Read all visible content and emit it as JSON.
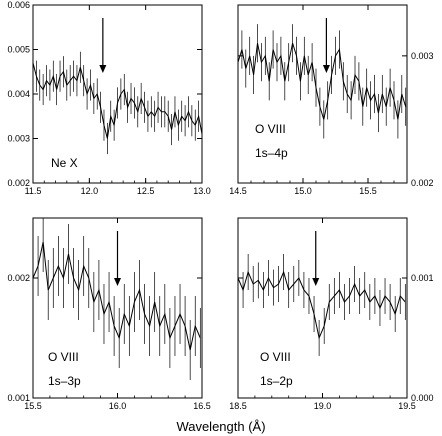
{
  "figure": {
    "xlabel": "Wavelength (Å)"
  },
  "chart_data": [
    {
      "type": "line",
      "labels": [
        "Ne X"
      ],
      "xlim": [
        11.5,
        13.0
      ],
      "ylim": [
        0.002,
        0.006
      ],
      "xticks": [
        11.5,
        12.0,
        12.5,
        13.0
      ],
      "xticklabels": [
        "11.5",
        "12.0",
        "12.5",
        "13.0"
      ],
      "yticks": [
        0.002,
        0.003,
        0.004,
        0.005,
        0.006
      ],
      "yticklabels": [
        "0.002",
        "0.003",
        "0.004",
        "0.005",
        "0.006"
      ],
      "yaxis_side": "left",
      "arrow_x": 12.12,
      "x": [
        11.5,
        11.53,
        11.56,
        11.59,
        11.62,
        11.65,
        11.68,
        11.71,
        11.74,
        11.77,
        11.8,
        11.83,
        11.86,
        11.89,
        11.92,
        11.95,
        11.98,
        12.01,
        12.04,
        12.07,
        12.1,
        12.13,
        12.16,
        12.19,
        12.22,
        12.25,
        12.28,
        12.31,
        12.34,
        12.37,
        12.4,
        12.43,
        12.46,
        12.49,
        12.52,
        12.55,
        12.58,
        12.61,
        12.64,
        12.67,
        12.7,
        12.73,
        12.76,
        12.79,
        12.82,
        12.85,
        12.88,
        12.91,
        12.94,
        12.97,
        13.0
      ],
      "y": [
        0.0047,
        0.0044,
        0.0042,
        0.0041,
        0.0043,
        0.0042,
        0.0044,
        0.0041,
        0.0044,
        0.0045,
        0.0042,
        0.0043,
        0.0044,
        0.0043,
        0.0046,
        0.0043,
        0.004,
        0.0042,
        0.0039,
        0.004,
        0.0037,
        0.0033,
        0.003,
        0.0035,
        0.0033,
        0.0038,
        0.004,
        0.0041,
        0.0037,
        0.0039,
        0.0038,
        0.0036,
        0.0039,
        0.0037,
        0.0035,
        0.0036,
        0.0035,
        0.0037,
        0.0036,
        0.0036,
        0.0035,
        0.0032,
        0.0036,
        0.0033,
        0.0035,
        0.0034,
        0.0036,
        0.0034,
        0.0033,
        0.0035,
        0.0031
      ],
      "err": 0.00035
    },
    {
      "type": "line",
      "labels": [
        "O VIII",
        "1s–4p"
      ],
      "xlim": [
        14.5,
        15.8
      ],
      "ylim": [
        0.002,
        0.0034
      ],
      "xticks": [
        14.5,
        15.0,
        15.5
      ],
      "xticklabels": [
        "14.5",
        "15.0",
        "15.5"
      ],
      "yticks": [
        0.002,
        0.003
      ],
      "yticklabels": [
        "0.002",
        "0.003"
      ],
      "yaxis_side": "right",
      "arrow_x": 15.18,
      "x": [
        14.5,
        14.53,
        14.56,
        14.59,
        14.62,
        14.65,
        14.68,
        14.71,
        14.74,
        14.77,
        14.8,
        14.83,
        14.86,
        14.89,
        14.92,
        14.95,
        14.98,
        15.01,
        15.04,
        15.07,
        15.1,
        15.13,
        15.16,
        15.19,
        15.22,
        15.25,
        15.28,
        15.31,
        15.34,
        15.37,
        15.4,
        15.43,
        15.46,
        15.49,
        15.52,
        15.55,
        15.58,
        15.61,
        15.64,
        15.67,
        15.7,
        15.73,
        15.76,
        15.79
      ],
      "y": [
        0.00295,
        0.00305,
        0.0029,
        0.003,
        0.00285,
        0.0031,
        0.00295,
        0.003,
        0.0028,
        0.00305,
        0.00295,
        0.003,
        0.0028,
        0.00295,
        0.0031,
        0.003,
        0.0028,
        0.003,
        0.00285,
        0.00295,
        0.00275,
        0.0026,
        0.0025,
        0.00265,
        0.00285,
        0.003,
        0.00305,
        0.0028,
        0.0027,
        0.00265,
        0.00285,
        0.0028,
        0.0026,
        0.00275,
        0.00265,
        0.0027,
        0.00255,
        0.0027,
        0.0026,
        0.00275,
        0.00265,
        0.0025,
        0.0027,
        0.0026
      ],
      "err": 0.00015
    },
    {
      "type": "line",
      "labels": [
        "O VIII",
        "1s–3p"
      ],
      "xlim": [
        15.5,
        16.5
      ],
      "ylim": [
        0.001,
        0.0025
      ],
      "xticks": [
        15.5,
        16.0,
        16.5
      ],
      "xticklabels": [
        "15.5",
        "16.0",
        "16.5"
      ],
      "yticks": [
        0.001,
        0.002
      ],
      "yticklabels": [
        "0.001",
        "0.002"
      ],
      "yaxis_side": "left",
      "arrow_x": 16.0,
      "x": [
        15.5,
        15.53,
        15.56,
        15.59,
        15.62,
        15.65,
        15.68,
        15.71,
        15.74,
        15.77,
        15.8,
        15.83,
        15.86,
        15.89,
        15.92,
        15.95,
        15.98,
        16.01,
        16.04,
        16.07,
        16.1,
        16.13,
        16.16,
        16.19,
        16.22,
        16.25,
        16.28,
        16.31,
        16.34,
        16.37,
        16.4,
        16.43,
        16.46,
        16.49
      ],
      "y": [
        0.002,
        0.0021,
        0.0023,
        0.0019,
        0.002,
        0.0021,
        0.002,
        0.0022,
        0.002,
        0.0019,
        0.0021,
        0.002,
        0.0018,
        0.0019,
        0.0017,
        0.0018,
        0.0016,
        0.0015,
        0.0017,
        0.0016,
        0.0018,
        0.0019,
        0.0017,
        0.0016,
        0.0018,
        0.0016,
        0.0017,
        0.0015,
        0.0016,
        0.0017,
        0.0016,
        0.0014,
        0.0016,
        0.0015
      ],
      "err": 0.00025
    },
    {
      "type": "line",
      "labels": [
        "O VIII",
        "1s–2p"
      ],
      "xlim": [
        18.5,
        19.5
      ],
      "ylim": [
        0.0,
        0.0015
      ],
      "xticks": [
        18.5,
        19.0,
        19.5
      ],
      "xticklabels": [
        "18.5",
        "19.0",
        "19.5"
      ],
      "yticks": [
        0.0,
        0.001
      ],
      "yticklabels": [
        "0.000",
        "0.001"
      ],
      "yaxis_side": "right",
      "arrow_x": 18.96,
      "x": [
        18.5,
        18.53,
        18.56,
        18.59,
        18.62,
        18.65,
        18.68,
        18.71,
        18.74,
        18.77,
        18.8,
        18.83,
        18.86,
        18.89,
        18.92,
        18.95,
        18.98,
        19.01,
        19.04,
        19.07,
        19.1,
        19.13,
        19.16,
        19.19,
        19.22,
        19.25,
        19.28,
        19.31,
        19.34,
        19.37,
        19.4,
        19.43,
        19.46,
        19.49
      ],
      "y": [
        0.001,
        0.0009,
        0.00105,
        0.00095,
        0.00098,
        0.0009,
        0.001,
        0.00092,
        0.00095,
        0.00105,
        0.0009,
        0.00095,
        0.001,
        0.0009,
        0.00085,
        0.0007,
        0.0005,
        0.0006,
        0.0008,
        0.00085,
        0.0009,
        0.0008,
        0.00085,
        0.00095,
        0.00085,
        0.0009,
        0.0008,
        0.00085,
        0.00075,
        0.00085,
        0.0008,
        0.0007,
        0.00085,
        0.0008
      ],
      "err": 0.00015
    }
  ]
}
